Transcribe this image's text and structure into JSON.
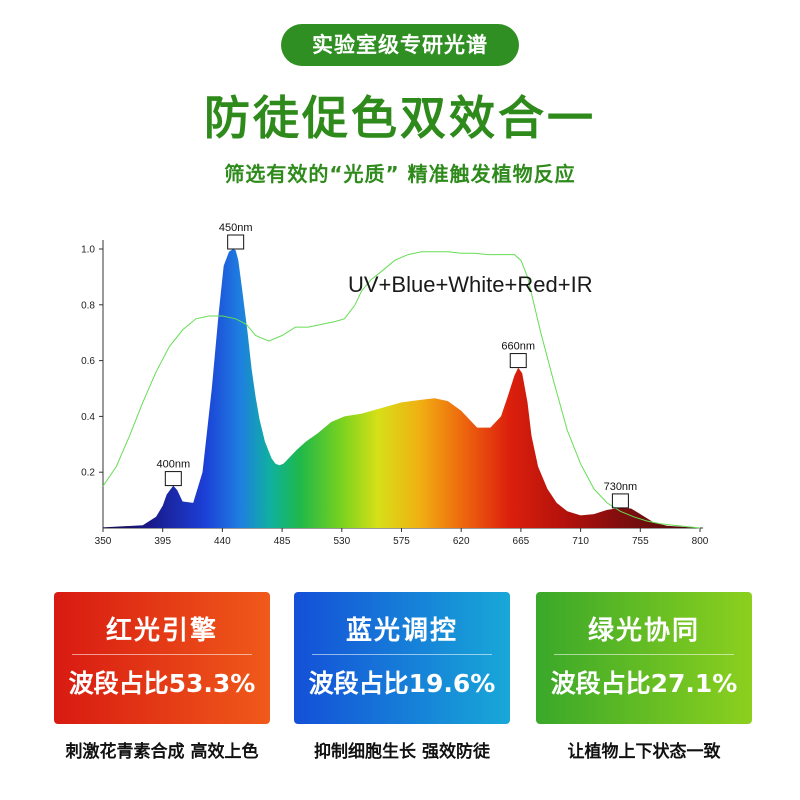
{
  "header": {
    "badge": "实验室级专研光谱",
    "headline": "防徒促色双效合一",
    "subtitle": "筛选有效的“光质” 精准触发植物反应"
  },
  "chart_data": {
    "type": "area",
    "annotation": "UV+Blue+White+Red+IR",
    "x_ticks": [
      350,
      395,
      440,
      485,
      530,
      575,
      620,
      665,
      710,
      755,
      800
    ],
    "y_ticks": [
      "0.2",
      "0.4",
      "0.6",
      "0.8",
      "1.0"
    ],
    "xlim": [
      350,
      800
    ],
    "ylim": [
      0,
      1.0
    ],
    "series": [
      {
        "x": [
          350,
          380,
          390,
          395,
          398,
          403,
          406,
          410,
          418,
          425,
          432,
          437,
          441,
          445,
          448,
          450,
          452,
          455,
          459,
          462,
          465,
          468,
          472,
          477,
          480,
          483,
          486,
          490,
          496,
          503,
          512,
          522,
          532,
          545,
          560,
          575,
          590,
          600,
          610,
          620,
          632,
          642,
          650,
          655,
          660,
          663,
          666,
          670,
          673,
          678,
          685,
          692,
          700,
          710,
          720,
          730,
          740,
          748,
          755,
          765,
          775,
          800
        ],
        "y": [
          0.002,
          0.01,
          0.04,
          0.08,
          0.12,
          0.152,
          0.135,
          0.095,
          0.09,
          0.2,
          0.5,
          0.76,
          0.94,
          0.99,
          1.0,
          0.995,
          0.96,
          0.85,
          0.7,
          0.57,
          0.47,
          0.39,
          0.31,
          0.25,
          0.23,
          0.225,
          0.23,
          0.25,
          0.28,
          0.31,
          0.34,
          0.38,
          0.4,
          0.41,
          0.43,
          0.45,
          0.46,
          0.465,
          0.455,
          0.42,
          0.36,
          0.36,
          0.4,
          0.47,
          0.545,
          0.575,
          0.555,
          0.45,
          0.33,
          0.22,
          0.14,
          0.09,
          0.06,
          0.045,
          0.05,
          0.065,
          0.072,
          0.07,
          0.05,
          0.02,
          0.008,
          0.0
        ]
      },
      {
        "x": [
          350,
          360,
          370,
          380,
          390,
          400,
          410,
          420,
          430,
          440,
          450,
          458,
          465,
          475,
          485,
          495,
          505,
          515,
          525,
          532,
          540,
          545,
          552,
          560,
          570,
          580,
          590,
          600,
          610,
          620,
          630,
          640,
          650,
          660,
          665,
          670,
          680,
          690,
          700,
          710,
          720,
          730,
          740,
          750,
          760,
          770,
          780,
          790,
          800
        ],
        "y": [
          0.15,
          0.22,
          0.33,
          0.45,
          0.56,
          0.65,
          0.71,
          0.75,
          0.76,
          0.76,
          0.75,
          0.73,
          0.69,
          0.67,
          0.69,
          0.72,
          0.72,
          0.73,
          0.74,
          0.75,
          0.8,
          0.85,
          0.89,
          0.92,
          0.96,
          0.98,
          0.99,
          0.99,
          0.99,
          0.985,
          0.985,
          0.98,
          0.98,
          0.98,
          0.96,
          0.9,
          0.7,
          0.52,
          0.35,
          0.23,
          0.14,
          0.09,
          0.06,
          0.04,
          0.025,
          0.015,
          0.01,
          0.005,
          0.0
        ]
      }
    ],
    "peaks": [
      {
        "label": "400nm",
        "x": 403,
        "y": 0.152
      },
      {
        "label": "450nm",
        "x": 450,
        "y": 1.0
      },
      {
        "label": "660nm",
        "x": 663,
        "y": 0.575
      },
      {
        "label": "730nm",
        "x": 740,
        "y": 0.072
      }
    ]
  },
  "cards": [
    {
      "title": "红光引擎",
      "value": "波段占比53.3%",
      "caption": "刺激花青素合成 高效上色"
    },
    {
      "title": "蓝光调控",
      "value": "波段占比19.6%",
      "caption": "抑制细胞生长 强效防徒"
    },
    {
      "title": "绿光协同",
      "value": "波段占比27.1%",
      "caption": "让植物上下状态一致"
    }
  ],
  "colors": {
    "brand_green": "#2f8a1c",
    "outline_curve": "#66dd55",
    "red_card": "#d81a12",
    "blue_card": "#1450d8",
    "green_card": "#3aa82a"
  }
}
